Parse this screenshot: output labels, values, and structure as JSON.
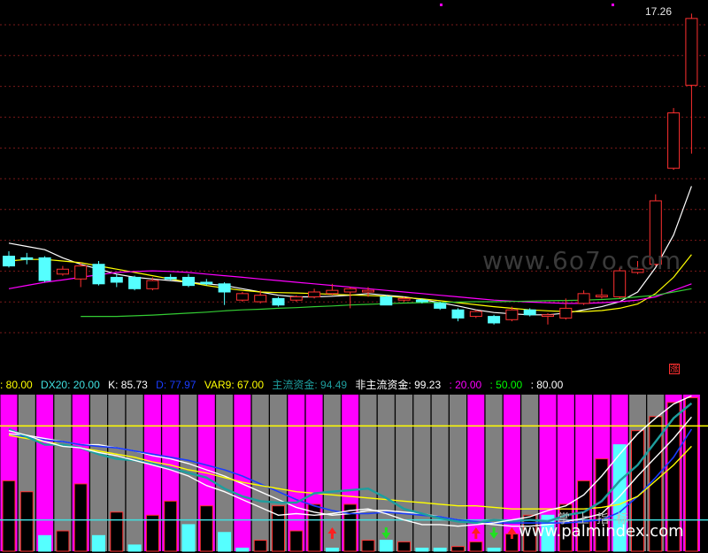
{
  "price_label": "17.26",
  "badge": "涨",
  "watermarks": [
    "www.6o7o.com",
    "www.palmindex.com",
    "掌上指标"
  ],
  "legend": [
    {
      "key": "a",
      "text": ": 80.00",
      "color": "#ffff00"
    },
    {
      "key": "b",
      "text": "DX20: 20.00",
      "color": "#40e0e0"
    },
    {
      "key": "c",
      "text": "K: 85.73",
      "color": "#ffffff"
    },
    {
      "key": "d",
      "text": "D: 77.97",
      "color": "#1a3cff"
    },
    {
      "key": "e",
      "text": "VAR9: 67.00",
      "color": "#ffff00"
    },
    {
      "key": "f",
      "text": "主流资金: 94.49",
      "color": "#1e9e9e"
    },
    {
      "key": "g",
      "text": "非主流资金: 99.23",
      "color": "#ffffff"
    },
    {
      "key": "h",
      "text": ": 20.00",
      "color": "#ff00ff"
    },
    {
      "key": "i",
      "text": ": 50.00",
      "color": "#00ff00"
    },
    {
      "key": "j",
      "text": ": 80.00",
      "color": "#ffffff"
    }
  ],
  "colors": {
    "up": "#ff3030",
    "down": "#55ffff",
    "ma5": "#ffffff",
    "ma10": "#ffff00",
    "ma20": "#ff00ff",
    "ma60": "#33cc33",
    "grid": "#7a1a1a",
    "mag": "#ff00ff",
    "gray": "#808080",
    "teal": "#1e9e9e"
  },
  "chart_data": [
    {
      "type": "candlestick",
      "title": "",
      "ylim": [
        7.5,
        17.5
      ],
      "candles": [
        {
          "o": 9.85,
          "c": 9.55,
          "h": 10.0,
          "l": 9.5
        },
        {
          "o": 9.8,
          "c": 9.75,
          "h": 9.95,
          "l": 9.6
        },
        {
          "o": 9.8,
          "c": 9.1,
          "h": 9.85,
          "l": 9.05
        },
        {
          "o": 9.3,
          "c": 9.45,
          "h": 9.55,
          "l": 9.25
        },
        {
          "o": 9.15,
          "c": 9.55,
          "h": 9.65,
          "l": 8.9
        },
        {
          "o": 9.6,
          "c": 9.0,
          "h": 9.7,
          "l": 8.95
        },
        {
          "o": 9.2,
          "c": 9.05,
          "h": 9.3,
          "l": 8.9
        },
        {
          "o": 9.2,
          "c": 8.85,
          "h": 9.25,
          "l": 8.8
        },
        {
          "o": 8.85,
          "c": 9.1,
          "h": 9.2,
          "l": 8.8
        },
        {
          "o": 9.2,
          "c": 9.15,
          "h": 9.3,
          "l": 9.1
        },
        {
          "o": 9.2,
          "c": 8.95,
          "h": 9.3,
          "l": 8.9
        },
        {
          "o": 9.05,
          "c": 9.0,
          "h": 9.15,
          "l": 8.95
        },
        {
          "o": 9.0,
          "c": 8.75,
          "h": 9.05,
          "l": 8.35
        },
        {
          "o": 8.5,
          "c": 8.7,
          "h": 8.75,
          "l": 8.45
        },
        {
          "o": 8.45,
          "c": 8.65,
          "h": 8.8,
          "l": 8.4
        },
        {
          "o": 8.55,
          "c": 8.35,
          "h": 8.6,
          "l": 8.3
        },
        {
          "o": 8.5,
          "c": 8.6,
          "h": 8.65,
          "l": 8.45
        },
        {
          "o": 8.6,
          "c": 8.75,
          "h": 8.85,
          "l": 8.55
        },
        {
          "o": 8.7,
          "c": 8.8,
          "h": 9.0,
          "l": 8.65
        },
        {
          "o": 8.75,
          "c": 8.85,
          "h": 8.9,
          "l": 8.25
        },
        {
          "o": 8.75,
          "c": 8.8,
          "h": 8.9,
          "l": 8.6
        },
        {
          "o": 8.6,
          "c": 8.35,
          "h": 8.65,
          "l": 8.35
        },
        {
          "o": 8.5,
          "c": 8.55,
          "h": 8.6,
          "l": 8.45
        },
        {
          "o": 8.5,
          "c": 8.45,
          "h": 8.55,
          "l": 8.4
        },
        {
          "o": 8.4,
          "c": 8.25,
          "h": 8.45,
          "l": 8.2
        },
        {
          "o": 8.2,
          "c": 7.95,
          "h": 8.25,
          "l": 7.85
        },
        {
          "o": 8.0,
          "c": 8.15,
          "h": 8.2,
          "l": 7.95
        },
        {
          "o": 8.0,
          "c": 7.8,
          "h": 8.05,
          "l": 7.75
        },
        {
          "o": 7.9,
          "c": 8.2,
          "h": 8.3,
          "l": 7.85
        },
        {
          "o": 8.2,
          "c": 8.05,
          "h": 8.25,
          "l": 8.0
        },
        {
          "o": 8.0,
          "c": 8.05,
          "h": 8.1,
          "l": 7.75
        },
        {
          "o": 7.95,
          "c": 8.25,
          "h": 8.55,
          "l": 7.9
        },
        {
          "o": 8.4,
          "c": 8.7,
          "h": 8.8,
          "l": 8.35
        },
        {
          "o": 8.6,
          "c": 8.65,
          "h": 8.85,
          "l": 8.55
        },
        {
          "o": 8.6,
          "c": 9.4,
          "h": 9.5,
          "l": 8.55
        },
        {
          "o": 9.35,
          "c": 9.45,
          "h": 9.7,
          "l": 9.3
        },
        {
          "o": 9.6,
          "c": 11.55,
          "h": 11.75,
          "l": 9.55
        },
        {
          "o": 12.55,
          "c": 14.25,
          "h": 14.4,
          "l": 12.5
        },
        {
          "o": 15.1,
          "c": 17.15,
          "h": 17.3,
          "l": 13.0
        }
      ],
      "series": [
        {
          "name": "MA5",
          "values": [
            10.25,
            10.15,
            10.05,
            9.8,
            9.6,
            9.45,
            9.3,
            9.2,
            9.15,
            9.1,
            9.05,
            9.0,
            8.95,
            8.85,
            8.75,
            8.65,
            8.6,
            8.6,
            8.62,
            8.65,
            8.7,
            8.65,
            8.6,
            8.52,
            8.42,
            8.32,
            8.2,
            8.12,
            8.08,
            8.05,
            8.05,
            8.1,
            8.2,
            8.3,
            8.45,
            8.75,
            9.5,
            10.5,
            12.0
          ]
        },
        {
          "name": "MA10",
          "values": [
            9.7,
            9.75,
            9.75,
            9.7,
            9.65,
            9.55,
            9.45,
            9.35,
            9.25,
            9.15,
            9.05,
            8.95,
            8.87,
            8.8,
            8.75,
            8.73,
            8.72,
            8.7,
            8.68,
            8.66,
            8.64,
            8.62,
            8.58,
            8.54,
            8.48,
            8.42,
            8.36,
            8.3,
            8.25,
            8.2,
            8.17,
            8.15,
            8.15,
            8.18,
            8.25,
            8.38,
            8.7,
            9.2,
            9.9
          ]
        },
        {
          "name": "MA20",
          "values": [
            8.85,
            8.95,
            9.05,
            9.12,
            9.2,
            9.28,
            9.35,
            9.38,
            9.4,
            9.38,
            9.35,
            9.3,
            9.25,
            9.2,
            9.15,
            9.1,
            9.05,
            9.0,
            8.95,
            8.9,
            8.85,
            8.8,
            8.75,
            8.7,
            8.65,
            8.6,
            8.55,
            8.5,
            8.47,
            8.44,
            8.42,
            8.4,
            8.4,
            8.42,
            8.45,
            8.5,
            8.6,
            8.8,
            9.0
          ]
        },
        {
          "name": "MA60",
          "values": [
            null,
            null,
            null,
            null,
            8.0,
            8.0,
            8.0,
            8.02,
            8.04,
            8.07,
            8.1,
            8.13,
            8.17,
            8.2,
            8.22,
            8.25,
            8.27,
            8.3,
            8.32,
            8.35,
            8.37,
            8.39,
            8.41,
            8.42,
            8.43,
            8.44,
            8.45,
            8.45,
            8.46,
            8.47,
            8.48,
            8.49,
            8.5,
            8.52,
            8.55,
            8.6,
            8.65,
            8.75,
            8.85
          ]
        }
      ]
    },
    {
      "type": "bar+line",
      "ylim": [
        0,
        100
      ],
      "background_bars": [
        "magenta",
        "gray",
        "magenta",
        "gray",
        "magenta",
        "gray",
        "gray",
        "gray",
        "magenta",
        "magenta",
        "gray",
        "magenta",
        "gray",
        "magenta",
        "gray",
        "gray",
        "magenta",
        "magenta",
        "gray",
        "magenta",
        "gray",
        "gray",
        "gray",
        "gray",
        "gray",
        "gray",
        "magenta",
        "gray",
        "magenta",
        "gray",
        "magenta",
        "magenta",
        "magenta",
        "magenta",
        "magenta",
        "gray",
        "gray",
        "magenta",
        "magenta"
      ],
      "histogram": [
        {
          "v": 45,
          "color": "black"
        },
        {
          "v": 38,
          "color": "black"
        },
        {
          "v": 10,
          "color": "cyan"
        },
        {
          "v": 13,
          "color": "black"
        },
        {
          "v": 43,
          "color": "black"
        },
        {
          "v": 10,
          "color": "cyan"
        },
        {
          "v": 25,
          "color": "black"
        },
        {
          "v": 4,
          "color": "cyan"
        },
        {
          "v": 23,
          "color": "black"
        },
        {
          "v": 32,
          "color": "black"
        },
        {
          "v": 17,
          "color": "cyan"
        },
        {
          "v": 29,
          "color": "black"
        },
        {
          "v": 12,
          "color": "cyan"
        },
        {
          "v": 2,
          "color": "cyan"
        },
        {
          "v": 7,
          "color": "black"
        },
        {
          "v": 29,
          "color": "black"
        },
        {
          "v": 13,
          "color": "black"
        },
        {
          "v": 30,
          "color": "black"
        },
        {
          "v": 2,
          "color": "cyan"
        },
        {
          "v": 30,
          "color": "black"
        },
        {
          "v": 7,
          "color": "black"
        },
        {
          "v": 7,
          "color": "cyan"
        },
        {
          "v": 6,
          "color": "black"
        },
        {
          "v": 2,
          "color": "cyan"
        },
        {
          "v": 2,
          "color": "cyan"
        },
        {
          "v": 3,
          "color": "black"
        },
        {
          "v": 6,
          "color": "black"
        },
        {
          "v": 2,
          "color": "cyan"
        },
        {
          "v": 11,
          "color": "black"
        },
        {
          "v": 23,
          "color": "black"
        },
        {
          "v": 23,
          "color": "cyan"
        },
        {
          "v": 30,
          "color": "black"
        },
        {
          "v": 45,
          "color": "black"
        },
        {
          "v": 59,
          "color": "black"
        },
        {
          "v": 68,
          "color": "cyan"
        },
        {
          "v": 77,
          "color": "black"
        },
        {
          "v": 86,
          "color": "black"
        },
        {
          "v": 95,
          "color": "black"
        },
        {
          "v": 98,
          "color": "black"
        }
      ],
      "hlines": [
        {
          "y": 80,
          "color": "yellow"
        },
        {
          "y": 20,
          "color": "cyan"
        }
      ],
      "series": [
        {
          "name": "K",
          "values": [
            75,
            74,
            72,
            70,
            68,
            68,
            66,
            64,
            61,
            59,
            56,
            52,
            48,
            43,
            38,
            33,
            28,
            25,
            23,
            24,
            26,
            26,
            25,
            24,
            22,
            20,
            18,
            17,
            16,
            16,
            17,
            19,
            21,
            24,
            35,
            48,
            60,
            72,
            85.73
          ]
        },
        {
          "name": "D",
          "values": [
            74,
            73,
            71,
            70,
            68,
            67,
            66,
            64,
            62,
            60,
            58,
            55,
            52,
            48,
            43,
            38,
            33,
            29,
            26,
            24,
            24,
            25,
            24,
            23,
            22,
            20,
            19,
            18,
            18,
            18,
            18,
            18,
            19,
            20,
            25,
            35,
            47,
            60,
            77.97
          ]
        },
        {
          "name": "VAR9",
          "values": [
            74,
            72,
            70,
            68,
            66,
            64,
            62,
            60,
            57,
            55,
            52,
            50,
            47,
            44,
            42,
            40,
            38,
            37,
            36,
            35,
            34,
            33,
            32,
            31,
            30,
            29,
            29,
            28,
            27,
            27,
            27,
            27,
            27,
            28,
            30,
            35,
            45,
            55,
            67
          ]
        },
        {
          "name": "主流资金",
          "values": [
            78,
            73,
            68,
            68,
            66,
            62,
            59,
            58,
            56,
            53,
            50,
            47,
            40,
            35,
            32,
            31,
            31,
            37,
            38,
            39,
            40,
            34,
            27,
            24,
            21,
            19,
            18,
            20,
            19,
            20,
            19,
            23,
            25,
            32,
            45,
            55,
            70,
            85,
            94.49
          ]
        },
        {
          "name": "非主流资金",
          "values": [
            77,
            74,
            70,
            67,
            66,
            63,
            61,
            58,
            55,
            52,
            48,
            42,
            38,
            33,
            28,
            23,
            24,
            23,
            24,
            26,
            27,
            24,
            20,
            17,
            17,
            16,
            17,
            18,
            20,
            22,
            26,
            29,
            36,
            48,
            62,
            75,
            85,
            94,
            99.23
          ]
        }
      ],
      "markers": [
        {
          "i": 18,
          "type": "up-arrow",
          "color": "#ff2020"
        },
        {
          "i": 21,
          "type": "down-arrow",
          "color": "#20e020"
        },
        {
          "i": 26,
          "type": "up-arrow",
          "color": "#ff2020"
        },
        {
          "i": 27,
          "type": "down-arrow",
          "color": "#20e020"
        },
        {
          "i": 28,
          "type": "up-arrow",
          "color": "#ff2020"
        }
      ]
    }
  ]
}
